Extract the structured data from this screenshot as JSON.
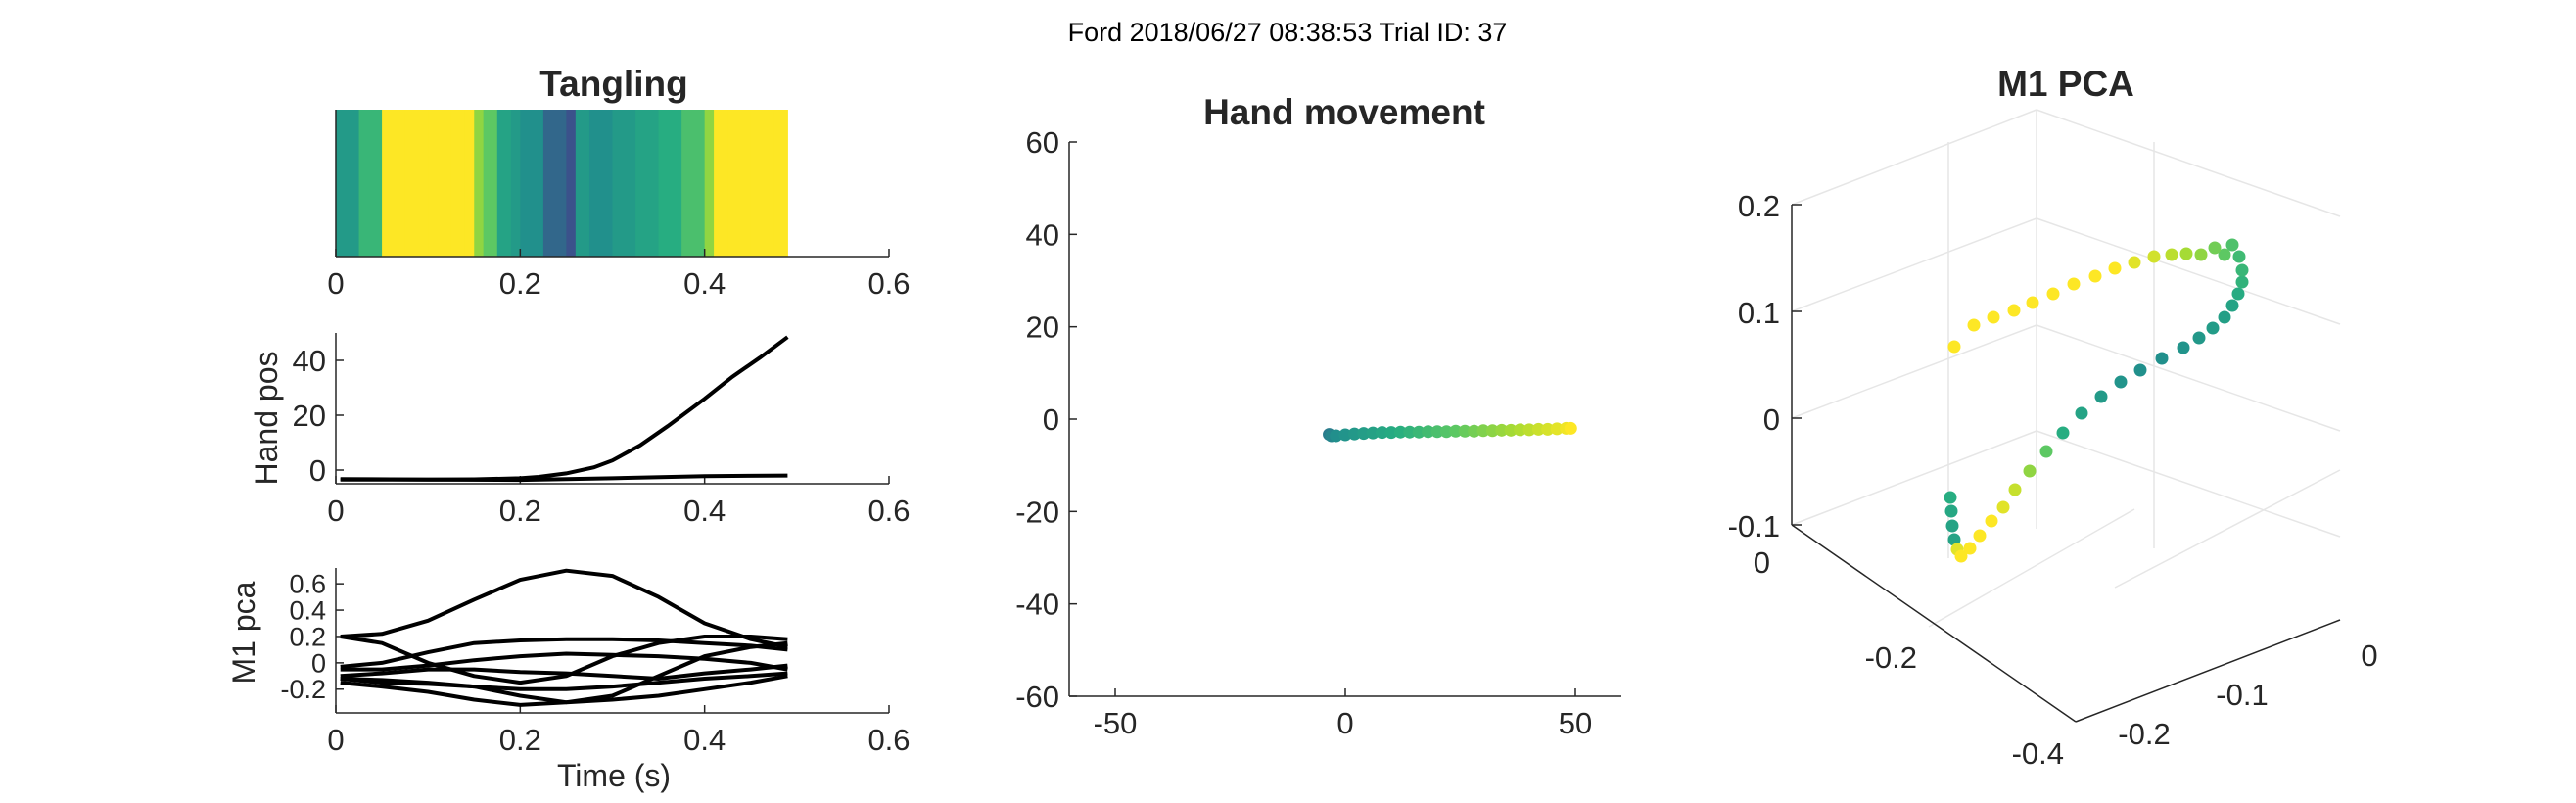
{
  "suptitle": "Ford 2018/06/27 08:38:53 Trial ID: 37",
  "tangling": {
    "title": "Tangling",
    "xticks": [
      "0",
      "0.2",
      "0.4",
      "0.6"
    ],
    "xlim": [
      0,
      0.6
    ]
  },
  "handpos": {
    "ylabel": "Hand pos",
    "xticks": [
      "0",
      "0.2",
      "0.4",
      "0.6"
    ],
    "yticks": [
      "0",
      "20",
      "40"
    ],
    "xlim": [
      0,
      0.6
    ],
    "ylim": [
      -5,
      50
    ]
  },
  "m1pca_ts": {
    "ylabel": "M1 pca",
    "xlabel": "Time (s)",
    "xticks": [
      "0",
      "0.2",
      "0.4",
      "0.6"
    ],
    "yticks": [
      "-0.2",
      "0",
      "0.2",
      "0.4",
      "0.6"
    ],
    "xlim": [
      0,
      0.6
    ],
    "ylim": [
      -0.38,
      0.72
    ]
  },
  "handmove": {
    "title": "Hand movement",
    "xticks": [
      "-50",
      "0",
      "50"
    ],
    "yticks": [
      "-60",
      "-40",
      "-20",
      "0",
      "20",
      "40",
      "60"
    ],
    "xlim": [
      -60,
      60
    ],
    "ylim": [
      -60,
      60
    ]
  },
  "pca3d": {
    "title": "M1 PCA",
    "zticks": [
      "-0.1",
      "0",
      "0.1",
      "0.2"
    ],
    "xticks": [
      "0",
      "-0.2",
      "-0.4"
    ],
    "yticks": [
      "-0.2",
      "-0.1",
      "0"
    ]
  },
  "chart_data": [
    {
      "type": "heatmap",
      "title": "Tangling",
      "x": [
        0.0,
        0.025,
        0.05,
        0.075,
        0.1,
        0.125,
        0.14,
        0.15,
        0.16,
        0.175,
        0.19,
        0.2,
        0.225,
        0.25,
        0.26,
        0.275,
        0.3,
        0.325,
        0.35,
        0.375,
        0.4,
        0.41,
        0.425,
        0.45,
        0.475
      ],
      "values": [
        0.45,
        0.6,
        1.0,
        1.0,
        1.0,
        1.0,
        1.0,
        0.8,
        0.7,
        0.5,
        0.45,
        0.4,
        0.3,
        0.2,
        0.45,
        0.4,
        0.45,
        0.5,
        0.55,
        0.65,
        0.8,
        1.0,
        1.0,
        1.0,
        1.0
      ],
      "xlim": [
        0,
        0.6
      ]
    },
    {
      "type": "line",
      "ylabel": "Hand pos",
      "xlim": [
        0,
        0.6
      ],
      "ylim": [
        -5,
        50
      ],
      "series": [
        {
          "x": [
            0.005,
            0.05,
            0.1,
            0.15,
            0.2,
            0.22,
            0.25,
            0.28,
            0.3,
            0.33,
            0.36,
            0.4,
            0.43,
            0.46,
            0.49
          ],
          "values": [
            -3.5,
            -3.5,
            -3.5,
            -3.4,
            -3.0,
            -2.5,
            -1.2,
            1.0,
            3.5,
            9.0,
            16.0,
            26.0,
            34.0,
            41.0,
            48.5
          ]
        },
        {
          "x": [
            0.005,
            0.1,
            0.2,
            0.3,
            0.4,
            0.49
          ],
          "values": [
            -3.3,
            -3.5,
            -3.6,
            -3.0,
            -2.2,
            -2.0
          ]
        }
      ]
    },
    {
      "type": "line",
      "ylabel": "M1 pca",
      "xlabel": "Time (s)",
      "xlim": [
        0,
        0.6
      ],
      "ylim": [
        -0.38,
        0.72
      ],
      "series": [
        {
          "x": [
            0.005,
            0.05,
            0.1,
            0.15,
            0.2,
            0.25,
            0.3,
            0.35,
            0.4,
            0.45,
            0.49
          ],
          "values": [
            0.2,
            0.22,
            0.32,
            0.48,
            0.63,
            0.7,
            0.66,
            0.5,
            0.3,
            0.18,
            0.12
          ]
        },
        {
          "x": [
            0.005,
            0.05,
            0.1,
            0.15,
            0.2,
            0.25,
            0.3,
            0.35,
            0.4,
            0.45,
            0.49
          ],
          "values": [
            0.2,
            0.15,
            0.0,
            -0.1,
            -0.15,
            -0.1,
            0.05,
            0.15,
            0.2,
            0.2,
            0.18
          ]
        },
        {
          "x": [
            0.005,
            0.05,
            0.1,
            0.15,
            0.2,
            0.25,
            0.3,
            0.35,
            0.4,
            0.45,
            0.49
          ],
          "values": [
            -0.03,
            0.0,
            0.08,
            0.15,
            0.17,
            0.18,
            0.18,
            0.17,
            0.15,
            0.13,
            0.1
          ]
        },
        {
          "x": [
            0.005,
            0.05,
            0.1,
            0.15,
            0.2,
            0.25,
            0.3,
            0.35,
            0.4,
            0.45,
            0.49
          ],
          "values": [
            -0.05,
            -0.05,
            -0.02,
            0.02,
            0.05,
            0.07,
            0.06,
            0.05,
            0.03,
            0.0,
            -0.05
          ]
        },
        {
          "x": [
            0.005,
            0.05,
            0.1,
            0.15,
            0.2,
            0.25,
            0.3,
            0.35,
            0.4,
            0.45,
            0.49
          ],
          "values": [
            -0.1,
            -0.08,
            -0.05,
            -0.05,
            -0.07,
            -0.08,
            -0.1,
            -0.12,
            -0.08,
            -0.05,
            -0.02
          ]
        },
        {
          "x": [
            0.005,
            0.05,
            0.1,
            0.15,
            0.2,
            0.25,
            0.3,
            0.35,
            0.4,
            0.45,
            0.49
          ],
          "values": [
            -0.12,
            -0.15,
            -0.16,
            -0.18,
            -0.2,
            -0.2,
            -0.18,
            -0.15,
            -0.12,
            -0.1,
            -0.08
          ]
        },
        {
          "x": [
            0.005,
            0.05,
            0.1,
            0.15,
            0.2,
            0.25,
            0.3,
            0.35,
            0.4,
            0.45,
            0.49
          ],
          "values": [
            -0.12,
            -0.13,
            -0.15,
            -0.18,
            -0.25,
            -0.3,
            -0.25,
            -0.1,
            0.05,
            0.12,
            0.15
          ]
        },
        {
          "x": [
            0.005,
            0.05,
            0.1,
            0.15,
            0.2,
            0.25,
            0.3,
            0.35,
            0.4,
            0.45,
            0.49
          ],
          "values": [
            -0.15,
            -0.18,
            -0.22,
            -0.28,
            -0.32,
            -0.3,
            -0.28,
            -0.25,
            -0.2,
            -0.15,
            -0.1
          ]
        }
      ]
    },
    {
      "type": "scatter",
      "title": "Hand movement",
      "xlim": [
        -60,
        60
      ],
      "ylim": [
        -60,
        60
      ],
      "x": [
        -3.5,
        -3.0,
        -2.0,
        0.0,
        2.0,
        4.0,
        6.0,
        8.0,
        10.0,
        12.0,
        14.0,
        16.0,
        18.0,
        20.0,
        22.0,
        24.0,
        26.0,
        28.0,
        30.0,
        32.0,
        34.0,
        36.0,
        38.0,
        40.0,
        42.0,
        44.0,
        46.0,
        48.0,
        49.0
      ],
      "y": [
        -3.3,
        -3.6,
        -3.6,
        -3.4,
        -3.2,
        -3.1,
        -3.0,
        -2.9,
        -2.9,
        -2.8,
        -2.8,
        -2.8,
        -2.7,
        -2.7,
        -2.7,
        -2.6,
        -2.6,
        -2.6,
        -2.5,
        -2.5,
        -2.4,
        -2.4,
        -2.3,
        -2.3,
        -2.2,
        -2.2,
        -2.1,
        -2.0,
        -2.0
      ]
    },
    {
      "type": "scatter",
      "title": "M1 PCA",
      "zticks": [
        -0.1,
        0,
        0.1,
        0.2
      ]
    }
  ]
}
